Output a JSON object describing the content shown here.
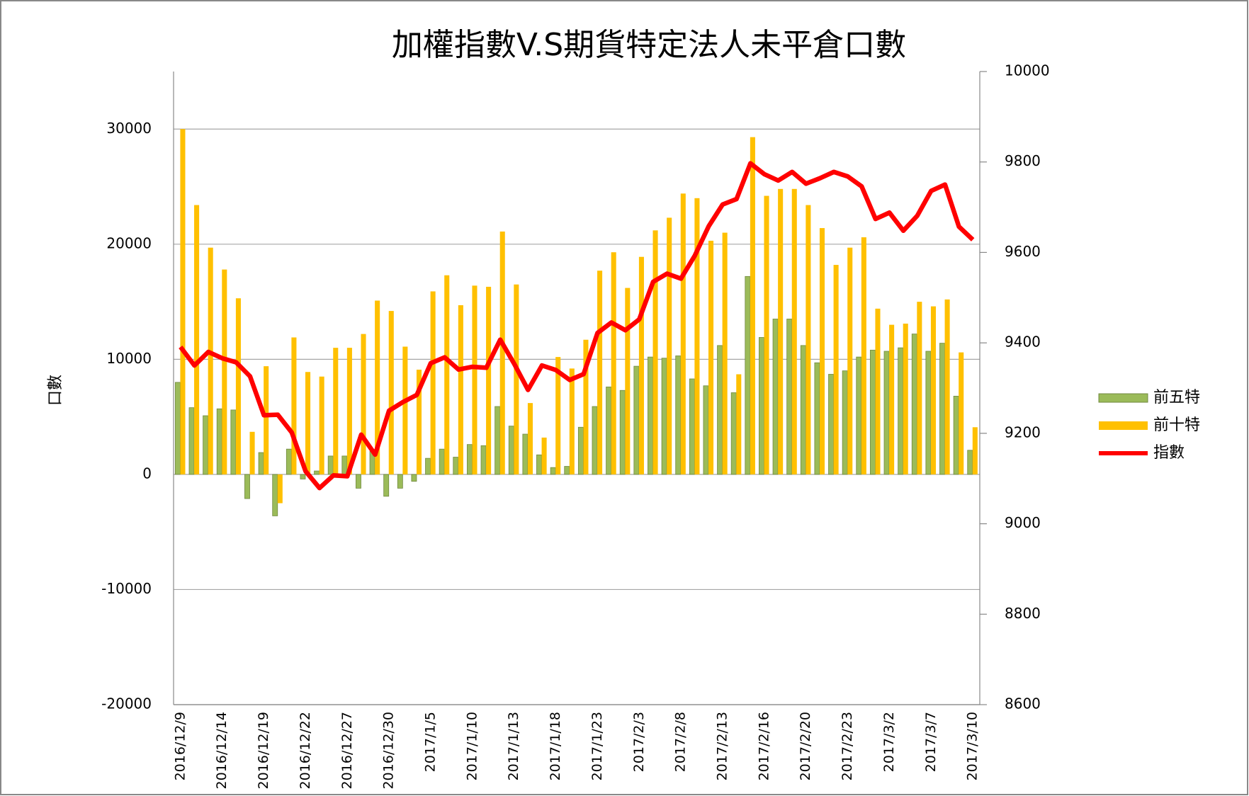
{
  "chart_data": {
    "type": "bar",
    "title": "加權指數V.S期貨特定法人未平倉口數",
    "y_label": "口數",
    "categories": [
      "2016/12/9",
      null,
      null,
      "2016/12/14",
      null,
      null,
      "2016/12/19",
      null,
      null,
      "2016/12/22",
      null,
      null,
      "2016/12/27",
      null,
      null,
      "2016/12/30",
      null,
      null,
      "2017/1/5",
      null,
      null,
      "2017/1/10",
      null,
      null,
      "2017/1/13",
      null,
      null,
      "2017/1/18",
      null,
      null,
      "2017/1/23",
      null,
      null,
      "2017/2/3",
      null,
      null,
      "2017/2/8",
      null,
      null,
      "2017/2/13",
      null,
      null,
      "2017/2/16",
      null,
      null,
      "2017/2/20",
      null,
      null,
      "2017/2/23",
      null,
      null,
      "2017/3/2",
      null,
      null,
      "2017/3/7",
      null,
      null,
      "2017/3/10"
    ],
    "series": [
      {
        "name": "前五特",
        "type": "bar",
        "color": "#9bbb59",
        "values": [
          8000,
          5800,
          5100,
          5700,
          5600,
          -2100,
          1900,
          -3600,
          2200,
          -400,
          300,
          1600,
          1600,
          -1200,
          2000,
          -1900,
          -1200,
          -600,
          1400,
          2200,
          1500,
          2600,
          2500,
          5900,
          4200,
          3500,
          1700,
          600,
          700,
          4100,
          5900,
          7600,
          7300,
          9400,
          10200,
          10100,
          10300,
          8300,
          7700,
          11200,
          7100,
          17200,
          11900,
          13500,
          13500,
          11200,
          9700,
          8700,
          9000,
          10200,
          10800,
          10700,
          11000,
          12200,
          10700,
          11400,
          6800,
          2100
        ]
      },
      {
        "name": "前十特",
        "type": "bar",
        "color": "#ffc000",
        "values": [
          30000,
          23400,
          19700,
          17800,
          15300,
          3700,
          9400,
          -2500,
          11900,
          8900,
          8500,
          11000,
          11000,
          12200,
          15100,
          14200,
          11100,
          9100,
          15900,
          17300,
          14700,
          16400,
          16300,
          21100,
          16500,
          6200,
          3200,
          10200,
          9200,
          11700,
          17700,
          19300,
          16200,
          18900,
          21200,
          22300,
          24400,
          24000,
          20300,
          21000,
          8700,
          29300,
          24200,
          24800,
          24800,
          23400,
          21400,
          18200,
          19700,
          20600,
          14400,
          13000,
          13100,
          15000,
          14600,
          15200,
          10600,
          4100
        ]
      },
      {
        "name": "指數",
        "type": "line",
        "axis": "y2",
        "color": "#ff0000",
        "values": [
          9391,
          9350,
          9380,
          9366,
          9357,
          9326,
          9240,
          9241,
          9202,
          9116,
          9079,
          9107,
          9105,
          9197,
          9153,
          9250,
          9269,
          9285,
          9355,
          9368,
          9341,
          9347,
          9345,
          9407,
          9354,
          9296,
          9350,
          9340,
          9318,
          9331,
          9422,
          9445,
          9428,
          9452,
          9535,
          9553,
          9542,
          9593,
          9658,
          9706,
          9718,
          9797,
          9773,
          9759,
          9778,
          9752,
          9764,
          9778,
          9768,
          9746,
          9674,
          9688,
          9648,
          9681,
          9736,
          9750,
          9657,
          9628
        ]
      }
    ],
    "ylim": [
      -20000,
      35000
    ],
    "yticks": [
      -20000,
      -10000,
      0,
      10000,
      20000,
      30000
    ],
    "y2lim": [
      8600,
      10000
    ],
    "y2ticks": [
      8600,
      8800,
      9000,
      9200,
      9400,
      9600,
      9800,
      10000
    ],
    "grid": true,
    "legend": "right"
  }
}
